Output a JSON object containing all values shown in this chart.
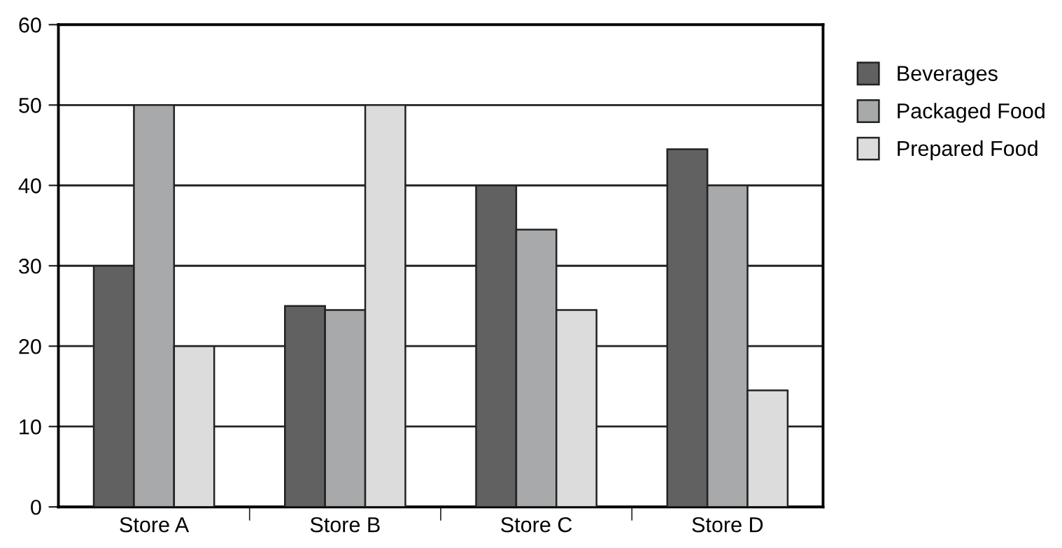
{
  "chart_data": {
    "type": "bar",
    "categories": [
      "Store A",
      "Store B",
      "Store C",
      "Store D"
    ],
    "series": [
      {
        "name": "Beverages",
        "color": "#616161",
        "values": [
          30,
          25,
          40,
          44.5
        ]
      },
      {
        "name": "Packaged Food",
        "color": "#a7a9ab",
        "values": [
          50,
          24.5,
          34.5,
          40
        ]
      },
      {
        "name": "Prepared Food",
        "color": "#dcdcdc",
        "values": [
          20,
          50,
          24.5,
          14.5
        ]
      }
    ],
    "ylim": [
      0,
      60
    ],
    "yticks": [
      0,
      10,
      20,
      30,
      40,
      50,
      60
    ],
    "grid": "y",
    "legend": "right"
  }
}
